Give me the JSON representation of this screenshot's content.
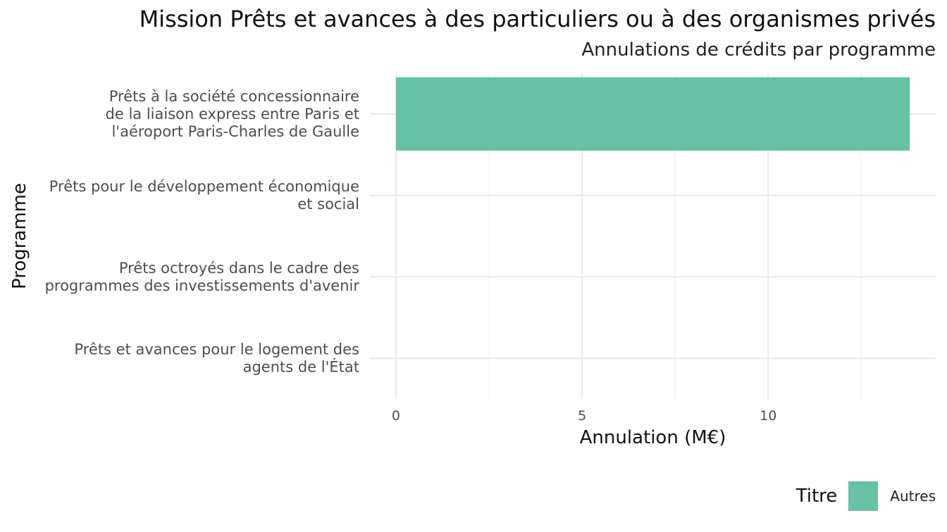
{
  "chart_data": {
    "type": "bar",
    "orientation": "horizontal",
    "title": "Mission Prêts et avances à des particuliers ou à des organismes privés",
    "subtitle": "Annulations de crédits par programme",
    "xlabel": "Annulation (M€)",
    "ylabel": "Programme",
    "categories": [
      [
        "Prêts à la société concessionnaire",
        "de la liaison express entre Paris et",
        "l'aéroport Paris-Charles de Gaulle"
      ],
      [
        "Prêts pour le développement économique",
        "et social"
      ],
      [
        "Prêts octroyés dans le cadre des",
        "programmes des investissements d'avenir"
      ],
      [
        "Prêts et avances pour le logement des",
        "agents de l'État"
      ]
    ],
    "series": [
      {
        "name": "Autres",
        "values": [
          13.8,
          0,
          0,
          0
        ],
        "color": "#66c2a5"
      }
    ],
    "xlim": [
      -0.7,
      14.5
    ],
    "xticks": [
      0,
      5,
      10
    ],
    "grid": true,
    "legend": {
      "title": "Titre",
      "placement": "bottom-right"
    }
  }
}
